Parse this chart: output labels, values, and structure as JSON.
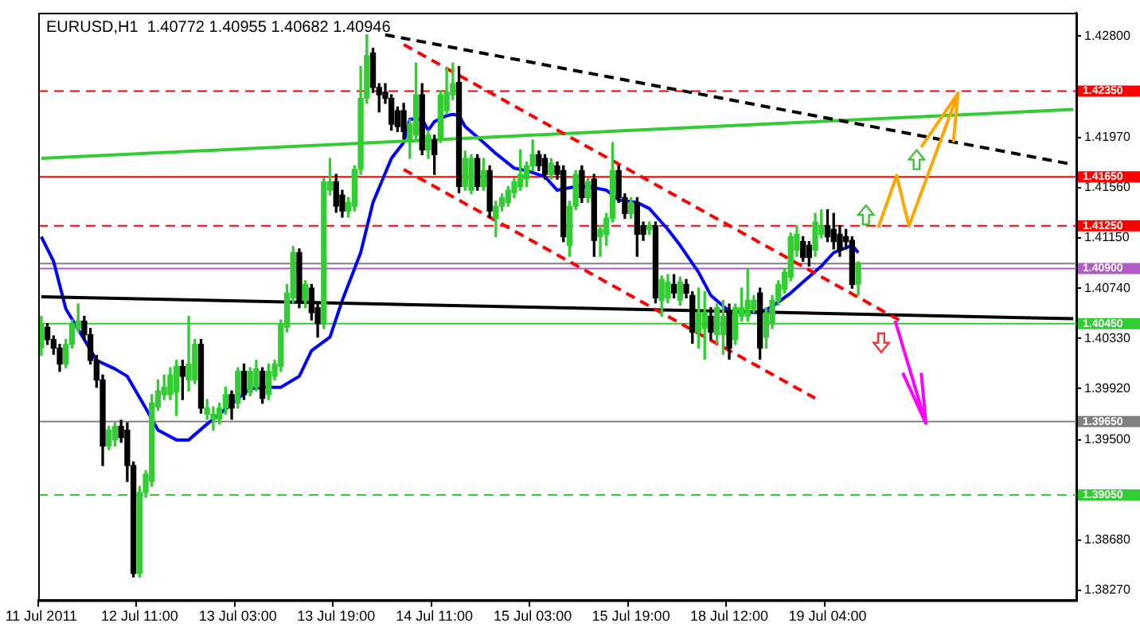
{
  "chart_data": {
    "type": "candlestick",
    "title": "EURUSD,H1  1.40772 1.40955 1.40682 1.40946",
    "ylim": [
      1.3819,
      1.4299
    ],
    "yticks": [
      {
        "value": 1.428,
        "label": "1.42800"
      },
      {
        "value": 1.4197,
        "label": "1.41970"
      },
      {
        "value": 1.4156,
        "label": "1.41560"
      },
      {
        "value": 1.4115,
        "label": "1.41150"
      },
      {
        "value": 1.4074,
        "label": "1.40740"
      },
      {
        "value": 1.4033,
        "label": "1.40330"
      },
      {
        "value": 1.3992,
        "label": "1.39920"
      },
      {
        "value": 1.395,
        "label": "1.39500"
      },
      {
        "value": 1.3868,
        "label": "1.38680"
      },
      {
        "value": 1.3827,
        "label": "1.38270"
      }
    ],
    "categories": [
      "11 Jul 2011",
      null,
      null,
      null,
      null,
      null,
      null,
      null,
      null,
      null,
      null,
      null,
      null,
      null,
      null,
      null,
      "12 Jul 11:00",
      null,
      null,
      null,
      null,
      null,
      null,
      null,
      null,
      null,
      null,
      null,
      null,
      null,
      null,
      null,
      "13 Jul 03:00",
      null,
      null,
      null,
      null,
      null,
      null,
      null,
      null,
      null,
      null,
      null,
      null,
      null,
      null,
      null,
      "13 Jul 19:00",
      null,
      null,
      null,
      null,
      null,
      null,
      null,
      null,
      null,
      null,
      null,
      null,
      null,
      null,
      null,
      "14 Jul 11:00",
      null,
      null,
      null,
      null,
      null,
      null,
      null,
      null,
      null,
      null,
      null,
      null,
      null,
      null,
      null,
      "15 Jul 03:00",
      null,
      null,
      null,
      null,
      null,
      null,
      null,
      null,
      null,
      null,
      null,
      null,
      null,
      null,
      null,
      "15 Jul 19:00",
      null,
      null,
      null,
      null,
      null,
      null,
      null,
      null,
      null,
      null,
      null,
      null,
      null,
      null,
      null,
      "18 Jul 12:00",
      null,
      null,
      null,
      null,
      null,
      null,
      null,
      null,
      null,
      null,
      null,
      null,
      null,
      null,
      null,
      "19 Jul 04:00",
      null,
      null,
      null,
      null,
      null,
      null,
      null,
      null,
      null,
      null,
      null,
      null,
      null,
      null,
      null,
      null,
      null,
      null,
      null,
      null,
      null,
      null,
      null,
      null,
      null,
      null,
      null,
      null,
      null,
      null,
      null,
      null,
      null,
      null,
      null,
      null,
      null,
      null,
      null,
      null
    ],
    "ohlc": [
      [
        1.4025,
        1.4051,
        1.4019,
        1.4045
      ],
      [
        1.4042,
        1.4045,
        1.4028,
        1.4032
      ],
      [
        1.4032,
        1.4035,
        1.402,
        1.4025
      ],
      [
        1.4025,
        1.4028,
        1.4006,
        1.4012
      ],
      [
        1.4012,
        1.4032,
        1.4009,
        1.4028
      ],
      [
        1.4028,
        1.4048,
        1.4025,
        1.4045
      ],
      [
        1.4041,
        1.4061,
        1.4038,
        1.4047
      ],
      [
        1.4047,
        1.4051,
        1.4032,
        1.4036
      ],
      [
        1.4036,
        1.4041,
        1.4012,
        1.4015
      ],
      [
        1.4015,
        1.4019,
        1.3993,
        1.3999
      ],
      [
        1.3999,
        1.4003,
        1.3929,
        1.3945
      ],
      [
        1.3945,
        1.3961,
        1.3942,
        1.3958
      ],
      [
        1.395,
        1.3964,
        1.3945,
        1.3961
      ],
      [
        1.3961,
        1.3966,
        1.3948,
        1.3952
      ],
      [
        1.3958,
        1.3964,
        1.3916,
        1.3929
      ],
      [
        1.3929,
        1.3932,
        1.3838,
        1.3841
      ],
      [
        1.3841,
        1.3912,
        1.3838,
        1.3907
      ],
      [
        1.3907,
        1.3925,
        1.3903,
        1.3922
      ],
      [
        1.3916,
        1.3987,
        1.3912,
        1.398
      ],
      [
        1.3977,
        1.3999,
        1.3974,
        1.399
      ],
      [
        1.3987,
        1.4003,
        1.3983,
        1.3993
      ],
      [
        1.3987,
        1.4009,
        1.3983,
        1.4003
      ],
      [
        1.3989,
        1.4015,
        1.397,
        1.401
      ],
      [
        1.401,
        1.4015,
        1.3983,
        1.4002
      ],
      [
        1.3999,
        1.4051,
        1.399,
        1.4012
      ],
      [
        1.3999,
        1.4032,
        1.3996,
        1.4028
      ],
      [
        1.4028,
        1.4032,
        1.3972,
        1.3976
      ],
      [
        1.3971,
        1.3983,
        1.3967,
        1.3976
      ],
      [
        1.3967,
        1.3977,
        1.3958,
        1.3971
      ],
      [
        1.3967,
        1.398,
        1.3963,
        1.3976
      ],
      [
        1.3976,
        1.3993,
        1.3971,
        1.3987
      ],
      [
        1.3987,
        1.399,
        1.3967,
        1.3976
      ],
      [
        1.398,
        1.4009,
        1.3976,
        1.4006
      ],
      [
        1.4006,
        1.4012,
        1.3983,
        1.3987
      ],
      [
        1.3989,
        1.4009,
        1.3986,
        1.4006
      ],
      [
        1.3993,
        1.4015,
        1.399,
        1.4008
      ],
      [
        1.4006,
        1.4009,
        1.398,
        1.3984
      ],
      [
        1.3987,
        1.4012,
        1.3983,
        1.4006
      ],
      [
        1.4002,
        1.4015,
        1.3999,
        1.4012
      ],
      [
        1.401,
        1.4048,
        1.4006,
        1.4045
      ],
      [
        1.4042,
        1.4077,
        1.4038,
        1.407
      ],
      [
        1.4066,
        1.4108,
        1.4062,
        1.4103
      ],
      [
        1.4103,
        1.4106,
        1.4058,
        1.4064
      ],
      [
        1.4064,
        1.408,
        1.4058,
        1.4077
      ],
      [
        1.4074,
        1.4077,
        1.4048,
        1.4054
      ],
      [
        1.4058,
        1.4061,
        1.4034,
        1.4045
      ],
      [
        1.4045,
        1.4164,
        1.4041,
        1.4161
      ],
      [
        1.4154,
        1.418,
        1.415,
        1.4161
      ],
      [
        1.4161,
        1.4167,
        1.4136,
        1.4141
      ],
      [
        1.415,
        1.4154,
        1.4132,
        1.4137
      ],
      [
        1.4137,
        1.4148,
        1.4132,
        1.4144
      ],
      [
        1.4141,
        1.4174,
        1.4137,
        1.4171
      ],
      [
        1.4171,
        1.4255,
        1.4167,
        1.4229
      ],
      [
        1.4229,
        1.4281,
        1.4225,
        1.4264
      ],
      [
        1.4266,
        1.427,
        1.4234,
        1.4238
      ],
      [
        1.4238,
        1.4241,
        1.4218,
        1.4232
      ],
      [
        1.4234,
        1.4241,
        1.4225,
        1.4229
      ],
      [
        1.4229,
        1.4232,
        1.4203,
        1.4208
      ],
      [
        1.4219,
        1.4222,
        1.4202,
        1.4206
      ],
      [
        1.4219,
        1.4225,
        1.4196,
        1.4202
      ],
      [
        1.4195,
        1.4212,
        1.418,
        1.4208
      ],
      [
        1.4199,
        1.4258,
        1.4196,
        1.4232
      ],
      [
        1.4232,
        1.4241,
        1.4183,
        1.4187
      ],
      [
        1.4187,
        1.4203,
        1.418,
        1.4199
      ],
      [
        1.4195,
        1.4199,
        1.4167,
        1.4183
      ],
      [
        1.4195,
        1.4235,
        1.4193,
        1.4232
      ],
      [
        1.4219,
        1.4254,
        1.4216,
        1.4234
      ],
      [
        1.4232,
        1.4258,
        1.4228,
        1.4241
      ],
      [
        1.4242,
        1.4255,
        1.4152,
        1.4157
      ],
      [
        1.4157,
        1.4186,
        1.4154,
        1.418
      ],
      [
        1.4154,
        1.4183,
        1.4151,
        1.418
      ],
      [
        1.418,
        1.4183,
        1.4154,
        1.4157
      ],
      [
        1.4157,
        1.418,
        1.4154,
        1.417
      ],
      [
        1.417,
        1.4174,
        1.4132,
        1.4137
      ],
      [
        1.4131,
        1.4145,
        1.4116,
        1.4141
      ],
      [
        1.4141,
        1.4151,
        1.4137,
        1.4148
      ],
      [
        1.4144,
        1.4157,
        1.4141,
        1.4154
      ],
      [
        1.4152,
        1.4164,
        1.4148,
        1.4161
      ],
      [
        1.4157,
        1.4187,
        1.4154,
        1.4167
      ],
      [
        1.4163,
        1.4177,
        1.4157,
        1.4174
      ],
      [
        1.4174,
        1.4195,
        1.417,
        1.4183
      ],
      [
        1.4183,
        1.4186,
        1.417,
        1.4174
      ],
      [
        1.418,
        1.4183,
        1.4163,
        1.4167
      ],
      [
        1.4167,
        1.418,
        1.4163,
        1.4176
      ],
      [
        1.4174,
        1.4177,
        1.4163,
        1.4167
      ],
      [
        1.417,
        1.4174,
        1.4112,
        1.4116
      ],
      [
        1.4109,
        1.4145,
        1.41,
        1.4141
      ],
      [
        1.4141,
        1.417,
        1.4138,
        1.4167
      ],
      [
        1.417,
        1.4174,
        1.4144,
        1.4148
      ],
      [
        1.4148,
        1.4164,
        1.4144,
        1.4161
      ],
      [
        1.4163,
        1.4167,
        1.41,
        1.4113
      ],
      [
        1.4116,
        1.4125,
        1.41,
        1.4122
      ],
      [
        1.4118,
        1.4135,
        1.4109,
        1.4131
      ],
      [
        1.4131,
        1.4193,
        1.4128,
        1.417
      ],
      [
        1.417,
        1.4174,
        1.4144,
        1.4148
      ],
      [
        1.4148,
        1.4151,
        1.4131,
        1.4135
      ],
      [
        1.4135,
        1.4148,
        1.4131,
        1.4144
      ],
      [
        1.4144,
        1.4148,
        1.41,
        1.4118
      ],
      [
        1.4125,
        1.4128,
        1.4113,
        1.4118
      ],
      [
        1.4122,
        1.4128,
        1.4118,
        1.4125
      ],
      [
        1.4125,
        1.4128,
        1.4062,
        1.4066
      ],
      [
        1.4064,
        1.4084,
        1.4051,
        1.4081
      ],
      [
        1.4066,
        1.4085,
        1.4062,
        1.4079
      ],
      [
        1.4077,
        1.4085,
        1.4066,
        1.407
      ],
      [
        1.4064,
        1.4083,
        1.406,
        1.4079
      ],
      [
        1.4077,
        1.4081,
        1.4066,
        1.407
      ],
      [
        1.4068,
        1.4071,
        1.4029,
        1.4038
      ],
      [
        1.4038,
        1.4074,
        1.4025,
        1.4054
      ],
      [
        1.4041,
        1.4071,
        1.4016,
        1.4054
      ],
      [
        1.4051,
        1.4058,
        1.4032,
        1.4038
      ],
      [
        1.4036,
        1.4061,
        1.4029,
        1.4058
      ],
      [
        1.4036,
        1.4064,
        1.402,
        1.4051
      ],
      [
        1.4054,
        1.4061,
        1.4016,
        1.4025
      ],
      [
        1.4032,
        1.4061,
        1.4028,
        1.4058
      ],
      [
        1.4051,
        1.4074,
        1.4047,
        1.4058
      ],
      [
        1.4051,
        1.409,
        1.4047,
        1.4064
      ],
      [
        1.4057,
        1.4068,
        1.4054,
        1.4064
      ],
      [
        1.407,
        1.4074,
        1.4016,
        1.4025
      ],
      [
        1.4034,
        1.4058,
        1.4025,
        1.4054
      ],
      [
        1.4045,
        1.4068,
        1.4041,
        1.4064
      ],
      [
        1.4064,
        1.408,
        1.406,
        1.4077
      ],
      [
        1.4073,
        1.409,
        1.407,
        1.4087
      ],
      [
        1.4083,
        1.4119,
        1.408,
        1.4116
      ],
      [
        1.4105,
        1.4125,
        1.41,
        1.4118
      ],
      [
        1.4112,
        1.4116,
        1.4096,
        1.4099
      ],
      [
        1.4109,
        1.4112,
        1.4092,
        1.4099
      ],
      [
        1.4105,
        1.4135,
        1.41,
        1.4128
      ],
      [
        1.4118,
        1.4138,
        1.4115,
        1.4125
      ],
      [
        1.4125,
        1.4138,
        1.4112,
        1.4116
      ],
      [
        1.4122,
        1.4135,
        1.4106,
        1.4112
      ],
      [
        1.4118,
        1.4125,
        1.41,
        1.4105
      ],
      [
        1.4116,
        1.4122,
        1.4106,
        1.4112
      ],
      [
        1.4113,
        1.4116,
        1.4074,
        1.4077
      ],
      [
        1.40772,
        1.40955,
        1.40682,
        1.40946
      ],
      null,
      null,
      null,
      null,
      null,
      null,
      null,
      null,
      null,
      null,
      null,
      null,
      null,
      null,
      null,
      null,
      null,
      null,
      null,
      null,
      null,
      null,
      null,
      null,
      null,
      null,
      null,
      null,
      null,
      null,
      null,
      null,
      null,
      null,
      null
    ],
    "series": [
      {
        "type": "line",
        "color": "#0000ff",
        "values": [
          1.4116,
          null,
          1.4096,
          null,
          1.4057,
          null,
          null,
          1.4032,
          null,
          1.4015,
          null,
          null,
          1.4008,
          null,
          1.4002,
          null,
          null,
          1.3976,
          null,
          1.3958,
          null,
          null,
          1.395,
          null,
          1.395,
          null,
          null,
          1.3963,
          null,
          1.3971,
          null,
          null,
          null,
          null,
          1.3992,
          null,
          null,
          1.3993,
          null,
          1.3993,
          null,
          null,
          1.4002,
          null,
          1.4023,
          null,
          null,
          1.4034,
          null,
          1.4064,
          null,
          null,
          1.4103,
          null,
          1.4144,
          null,
          null,
          1.418,
          null,
          1.4193,
          1.4212,
          null,
          1.4212,
          1.4203,
          1.421,
          null,
          1.4215,
          1.4216,
          1.4215,
          1.4206,
          null,
          null,
          1.4193,
          null,
          1.4184,
          null,
          null,
          1.4172,
          null,
          1.417,
          null,
          null,
          1.4165,
          null,
          1.4154,
          null,
          null,
          1.4157,
          null,
          1.4157,
          null,
          null,
          1.4154,
          null,
          1.4146,
          null,
          null,
          1.4144,
          null,
          1.4139,
          null,
          null,
          1.4122,
          null,
          1.4109,
          null,
          null,
          1.4087,
          null,
          1.4068,
          null,
          null,
          1.4055,
          null,
          null,
          null,
          null,
          1.4054,
          null,
          1.4059,
          null,
          null,
          1.407,
          null,
          1.4079,
          null,
          null,
          1.4092,
          null,
          1.4103,
          null,
          null,
          1.4109,
          1.4103,
          null,
          null,
          null,
          null,
          null,
          null,
          null,
          null,
          null,
          null,
          null,
          null,
          null,
          null,
          null,
          null,
          null,
          null,
          null,
          null,
          null,
          null,
          null,
          null,
          null,
          null,
          null,
          null,
          null,
          null,
          null,
          null,
          null,
          null,
          null
        ]
      },
      {
        "type": "line",
        "color": "#000000",
        "values": [
          1.4067,
          null,
          null,
          null,
          null,
          null,
          null,
          null,
          null,
          null,
          null,
          null,
          null,
          null,
          null,
          null,
          null,
          null,
          null,
          null,
          null,
          null,
          null,
          null,
          null,
          null,
          null,
          null,
          null,
          null,
          null,
          null,
          null,
          null,
          null,
          null,
          null,
          null,
          null,
          null,
          null,
          null,
          null,
          null,
          null,
          null,
          null,
          null,
          null,
          null,
          null,
          null,
          null,
          null,
          null,
          null,
          null,
          null,
          null,
          null,
          null,
          null,
          null,
          null,
          null,
          null,
          null,
          null,
          null,
          null,
          null,
          null,
          null,
          null,
          null,
          null,
          null,
          null,
          null,
          null,
          null,
          null,
          null,
          null,
          null,
          null,
          null,
          null,
          null,
          null,
          null,
          null,
          null,
          null,
          null,
          null,
          null,
          null,
          null,
          null,
          null,
          null,
          null,
          null,
          null,
          null,
          null,
          null,
          null,
          null,
          null,
          null,
          null,
          null,
          null,
          null,
          null,
          null,
          null,
          null,
          null,
          null,
          null,
          null,
          null,
          null,
          null,
          null,
          null,
          null,
          null,
          null,
          null,
          null,
          null,
          null,
          null,
          null,
          null,
          null,
          null,
          null,
          null,
          null,
          null,
          null,
          null,
          null,
          null,
          null,
          null,
          null,
          null,
          null,
          null,
          null,
          null,
          null,
          null,
          null,
          null,
          null,
          null,
          null,
          null,
          null,
          null,
          null,
          1.4049
        ]
      },
      {
        "type": "line",
        "color": "#32cd32",
        "values": [
          1.418,
          null,
          null,
          null,
          null,
          null,
          null,
          null,
          null,
          null,
          null,
          null,
          null,
          null,
          null,
          null,
          null,
          null,
          null,
          null,
          null,
          null,
          null,
          null,
          null,
          null,
          null,
          null,
          null,
          null,
          null,
          null,
          null,
          null,
          null,
          null,
          null,
          null,
          null,
          null,
          null,
          null,
          null,
          null,
          null,
          null,
          null,
          null,
          null,
          null,
          null,
          null,
          null,
          null,
          null,
          null,
          null,
          null,
          null,
          null,
          null,
          null,
          null,
          null,
          null,
          null,
          null,
          null,
          null,
          null,
          null,
          null,
          null,
          null,
          null,
          null,
          null,
          null,
          null,
          null,
          null,
          null,
          null,
          null,
          null,
          null,
          null,
          null,
          null,
          null,
          null,
          null,
          null,
          null,
          null,
          null,
          null,
          null,
          null,
          null,
          null,
          null,
          null,
          null,
          null,
          null,
          null,
          null,
          null,
          null,
          null,
          null,
          null,
          null,
          null,
          null,
          null,
          null,
          null,
          null,
          null,
          null,
          null,
          null,
          null,
          null,
          null,
          null,
          null,
          null,
          null,
          null,
          null,
          null,
          null,
          null,
          null,
          null,
          null,
          null,
          null,
          null,
          null,
          null,
          null,
          null,
          null,
          null,
          null,
          null,
          null,
          null,
          null,
          null,
          null,
          null,
          null,
          null,
          null,
          null,
          null,
          null,
          null,
          null,
          null,
          null,
          null,
          null,
          1.422
        ]
      },
      {
        "type": "line",
        "color": "#000000",
        "line_style": "dashed",
        "values": [
          null,
          null,
          null,
          null,
          null,
          null,
          null,
          null,
          null,
          null,
          null,
          null,
          null,
          null,
          null,
          null,
          null,
          null,
          null,
          null,
          null,
          null,
          null,
          null,
          null,
          null,
          null,
          null,
          null,
          null,
          null,
          null,
          null,
          null,
          null,
          null,
          null,
          null,
          null,
          null,
          null,
          null,
          null,
          null,
          null,
          null,
          null,
          null,
          null,
          null,
          null,
          null,
          null,
          null,
          null,
          null,
          1.4281,
          null,
          null,
          null,
          null,
          null,
          null,
          null,
          null,
          null,
          null,
          null,
          null,
          null,
          null,
          null,
          null,
          null,
          null,
          null,
          null,
          null,
          null,
          null,
          null,
          null,
          null,
          null,
          null,
          null,
          null,
          null,
          null,
          null,
          null,
          null,
          null,
          null,
          null,
          null,
          null,
          null,
          null,
          null,
          null,
          null,
          null,
          null,
          null,
          null,
          null,
          null,
          null,
          null,
          null,
          null,
          null,
          null,
          null,
          null,
          null,
          null,
          null,
          null,
          null,
          null,
          null,
          null,
          null,
          null,
          null,
          null,
          null,
          null,
          null,
          null,
          null,
          null,
          null,
          null,
          null,
          null,
          null,
          null,
          null,
          null,
          null,
          null,
          null,
          null,
          null,
          null,
          null,
          null,
          null,
          null,
          null,
          null,
          null,
          null,
          null,
          null,
          null,
          null,
          null,
          null,
          null,
          null,
          null,
          null,
          null,
          null,
          1.4175
        ]
      },
      {
        "type": "line",
        "color": "#ff0000",
        "line_style": "dashed",
        "values": [
          null,
          null,
          null,
          null,
          null,
          null,
          null,
          null,
          null,
          null,
          null,
          null,
          null,
          null,
          null,
          null,
          null,
          null,
          null,
          null,
          null,
          null,
          null,
          null,
          null,
          null,
          null,
          null,
          null,
          null,
          null,
          null,
          null,
          null,
          null,
          null,
          null,
          null,
          null,
          null,
          null,
          null,
          null,
          null,
          null,
          null,
          null,
          null,
          null,
          null,
          null,
          null,
          null,
          null,
          null,
          null,
          null,
          null,
          null,
          1.4273,
          null,
          null,
          null,
          null,
          null,
          null,
          null,
          null,
          null,
          null,
          null,
          null,
          null,
          null,
          null,
          null,
          null,
          null,
          null,
          null,
          null,
          null,
          null,
          null,
          null,
          null,
          null,
          null,
          null,
          null,
          null,
          null,
          null,
          null,
          null,
          null,
          null,
          null,
          null,
          null,
          null,
          null,
          null,
          null,
          null,
          null,
          null,
          null,
          null,
          null,
          null,
          null,
          null,
          null,
          null,
          null,
          null,
          null,
          null,
          null,
          null,
          null,
          null,
          null,
          null,
          null,
          null,
          null,
          null,
          null,
          null,
          null,
          null,
          null,
          null,
          null,
          null,
          null,
          null,
          null,
          1.4047,
          null,
          null,
          null,
          null,
          null,
          null,
          null,
          null,
          null,
          null,
          null,
          null,
          null,
          null,
          null,
          null,
          null,
          null,
          null,
          null,
          null,
          null,
          null,
          null,
          null,
          null,
          null,
          null
        ]
      },
      {
        "type": "line",
        "color": "#ff0000",
        "line_style": "dashed",
        "values": [
          null,
          null,
          null,
          null,
          null,
          null,
          null,
          null,
          null,
          null,
          null,
          null,
          null,
          null,
          null,
          null,
          null,
          null,
          null,
          null,
          null,
          null,
          null,
          null,
          null,
          null,
          null,
          null,
          null,
          null,
          null,
          null,
          null,
          null,
          null,
          null,
          null,
          null,
          null,
          null,
          null,
          null,
          null,
          null,
          null,
          null,
          null,
          null,
          null,
          null,
          null,
          null,
          null,
          null,
          null,
          null,
          null,
          null,
          null,
          1.4171,
          null,
          null,
          null,
          null,
          null,
          null,
          null,
          null,
          null,
          null,
          null,
          null,
          null,
          null,
          null,
          null,
          null,
          null,
          null,
          null,
          null,
          null,
          null,
          null,
          null,
          null,
          null,
          null,
          null,
          null,
          null,
          null,
          null,
          null,
          null,
          null,
          null,
          null,
          null,
          null,
          null,
          null,
          null,
          null,
          null,
          null,
          null,
          null,
          null,
          null,
          null,
          null,
          null,
          null,
          null,
          null,
          null,
          null,
          null,
          null,
          null,
          null,
          null,
          null,
          null,
          null,
          1.3984,
          null,
          null,
          null,
          null,
          null,
          null,
          null,
          null,
          null,
          null,
          null,
          null,
          null,
          null,
          null,
          null,
          null,
          null,
          null,
          null,
          null,
          null,
          null,
          null,
          null,
          null,
          null,
          null,
          null,
          null,
          null,
          null,
          null,
          null,
          null,
          null,
          null,
          null,
          null,
          null,
          null,
          null
        ]
      }
    ],
    "ref_lines": [
      {
        "axis": "y",
        "value": 1.4235,
        "label": "1.42350",
        "color": "#ff0000",
        "line_style": "dashed"
      },
      {
        "axis": "y",
        "value": 1.4165,
        "label": "1.41650",
        "color": "#ff0000",
        "line_style": "solid"
      },
      {
        "axis": "y",
        "value": 1.4125,
        "label": "1.41250",
        "color": "#ff0000",
        "line_style": "dashed"
      },
      {
        "axis": "y",
        "value": 1.4094,
        "label": null,
        "color": "#808080",
        "line_style": "solid"
      },
      {
        "axis": "y",
        "value": 1.409,
        "label": "1.40900",
        "color": "#b05cc8",
        "line_style": "solid"
      },
      {
        "axis": "y",
        "value": 1.4045,
        "label": "1.40450",
        "color": "#32cd32",
        "line_style": "solid"
      },
      {
        "axis": "y",
        "value": 1.3965,
        "label": "1.39650",
        "color": "#808080",
        "line_style": "solid"
      },
      {
        "axis": "y",
        "value": 1.3905,
        "label": "1.39050",
        "color": "#32cd32",
        "line_style": "dashed"
      }
    ]
  }
}
